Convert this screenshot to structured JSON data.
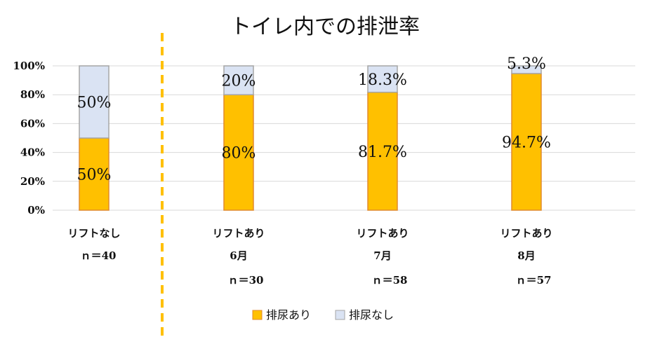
{
  "chart_data": {
    "type": "bar",
    "stacked": true,
    "title": "トイレ内での排泄率",
    "categories": [
      {
        "lines": [
          "リフトなし",
          "ｎ＝40"
        ]
      },
      {
        "lines": [
          "リフトあり",
          "6月",
          "ｎ＝30"
        ]
      },
      {
        "lines": [
          "リフトあり",
          "7月",
          "ｎ＝58"
        ]
      },
      {
        "lines": [
          "リフトあり",
          "8月",
          "ｎ＝57"
        ]
      }
    ],
    "series": [
      {
        "name": "排尿あり",
        "color": "#FFC000",
        "values": [
          50,
          80,
          81.7,
          94.7
        ],
        "labels": [
          "50%",
          "80%",
          "81.7%",
          "94.7%"
        ]
      },
      {
        "name": "排尿なし",
        "color": "#DAE3F3",
        "values": [
          50,
          20,
          18.3,
          5.3
        ],
        "labels": [
          "50%",
          "20%",
          "18.3%",
          "5.3%"
        ]
      }
    ],
    "y_ticks": [
      "0%",
      "20%",
      "40%",
      "60%",
      "80%",
      "100%"
    ],
    "ylim": [
      0,
      100
    ],
    "grid": true,
    "legend": "bottom",
    "divider": "dashed line between first and second category",
    "divider_color": "#FFC000",
    "bar_outline_color": "#E08A2E",
    "bar2_outline_color": "#A6A6A6",
    "gridline_color": "#D9D9D9"
  }
}
